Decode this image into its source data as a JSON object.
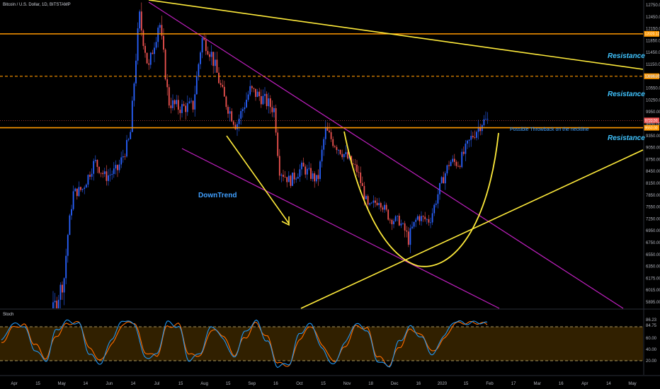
{
  "header": {
    "symbol_title": "Bitcoin / U.S. Dollar, 1D, BITSTAMP"
  },
  "annotations": {
    "resistance_labels": [
      "Resistance",
      "Resistance",
      "Resistance"
    ],
    "neckline_note": "Possible Throwback on the neckline",
    "downtrend_label": "DownTrend"
  },
  "colors": {
    "background": "#000000",
    "candle_up": "#2962ff",
    "candle_down": "#ef5350",
    "support_resistance": "#ff9800",
    "trendline": "#ffeb3b",
    "channel": "#c020c0",
    "label_cyan": "#40c4ff",
    "stoch_k": "#2196f3",
    "stoch_d": "#ff6d00",
    "stoch_band": "#3a2600"
  },
  "chart_data": [
    {
      "type": "line",
      "title": "Bitcoin / U.S. Dollar, 1D, BITSTAMP",
      "price_axis_ticks": [
        "12750.00",
        "12450.00",
        "12150.00",
        "11850.00",
        "11450.00",
        "11150.00",
        "10850.00",
        "10550.00",
        "10250.00",
        "9950.00",
        "9650.00",
        "9350.00",
        "9050.00",
        "8750.00",
        "8450.00",
        "8150.00",
        "7850.00",
        "7550.00",
        "7250.00",
        "6950.00",
        "6750.00",
        "6550.00",
        "6350.00",
        "6175.00",
        "6015.00",
        "5895.00"
      ],
      "time_axis_ticks": [
        "Apr",
        "15",
        "May",
        "14",
        "Jun",
        "14",
        "Jul",
        "15",
        "Aug",
        "15",
        "Sep",
        "16",
        "Oct",
        "15",
        "Nov",
        "18",
        "Dec",
        "16",
        "2020",
        "15",
        "Feb",
        "17",
        "Mar",
        "16",
        "Apr",
        "14",
        "May"
      ],
      "ylim": [
        5800,
        13000
      ],
      "current_price_tag": "9733.50",
      "resistance_price_tags": [
        "12020.12",
        "10850.00",
        "9550.00"
      ],
      "resistance_levels": [
        12020,
        10850,
        9550
      ],
      "x_date_range": [
        "2019-04-01",
        "2020-05-15"
      ],
      "series": [
        {
          "dates": [
            "2019-04-01",
            "2019-04-10",
            "2019-04-20",
            "2019-05-01",
            "2019-05-08",
            "2019-05-14",
            "2019-05-20",
            "2019-05-28",
            "2019-06-04",
            "2019-06-12",
            "2019-06-20",
            "2019-06-26",
            "2019-07-02",
            "2019-07-09",
            "2019-07-15",
            "2019-07-22",
            "2019-07-31",
            "2019-08-06",
            "2019-08-12",
            "2019-08-20",
            "2019-08-28",
            "2019-09-06",
            "2019-09-14",
            "2019-09-22",
            "2019-09-25",
            "2019-10-02",
            "2019-10-10",
            "2019-10-20",
            "2019-10-25",
            "2019-10-30",
            "2019-11-08",
            "2019-11-15",
            "2019-11-22",
            "2019-11-29",
            "2019-12-06",
            "2019-12-12",
            "2019-12-18",
            "2019-12-24",
            "2020-01-01",
            "2020-01-08",
            "2020-01-14",
            "2020-01-20",
            "2020-01-28",
            "2020-02-04",
            "2020-02-08"
          ],
          "close": [
            4100,
            5050,
            5300,
            5800,
            6150,
            7900,
            8000,
            8700,
            8300,
            8500,
            9300,
            12500,
            11000,
            12400,
            10200,
            10050,
            10100,
            11900,
            11400,
            10300,
            9600,
            10500,
            10300,
            10000,
            8500,
            8200,
            8550,
            8200,
            9500,
            9200,
            8800,
            8450,
            7500,
            7750,
            7250,
            7200,
            6800,
            7300,
            7200,
            8100,
            8700,
            8650,
            9300,
            9700,
            9733.5
          ]
        }
      ]
    },
    {
      "type": "line",
      "title": "Stoch",
      "ylim": [
        0,
        100
      ],
      "axis_ticks": [
        "86.23",
        "84.75",
        "60.00",
        "40.00",
        "20.00"
      ],
      "levels": [
        80,
        20
      ],
      "series": [
        {
          "name": "%K",
          "values": [
            55,
            85,
            82,
            40,
            20,
            75,
            90,
            85,
            30,
            15,
            60,
            92,
            85,
            25,
            30,
            88,
            80,
            20,
            35,
            82,
            60,
            25,
            70,
            90,
            55,
            10,
            15,
            70,
            85,
            40,
            12,
            50,
            85,
            75,
            20,
            10,
            55,
            80,
            60,
            30,
            65,
            90,
            86,
            88,
            86
          ]
        },
        {
          "name": "%D",
          "values": [
            50,
            78,
            84,
            50,
            25,
            65,
            86,
            87,
            40,
            20,
            50,
            85,
            88,
            35,
            28,
            80,
            84,
            30,
            30,
            75,
            66,
            30,
            60,
            86,
            62,
            15,
            12,
            60,
            82,
            48,
            18,
            42,
            80,
            78,
            28,
            12,
            45,
            76,
            64,
            35,
            58,
            86,
            87,
            87,
            84
          ]
        }
      ]
    }
  ]
}
